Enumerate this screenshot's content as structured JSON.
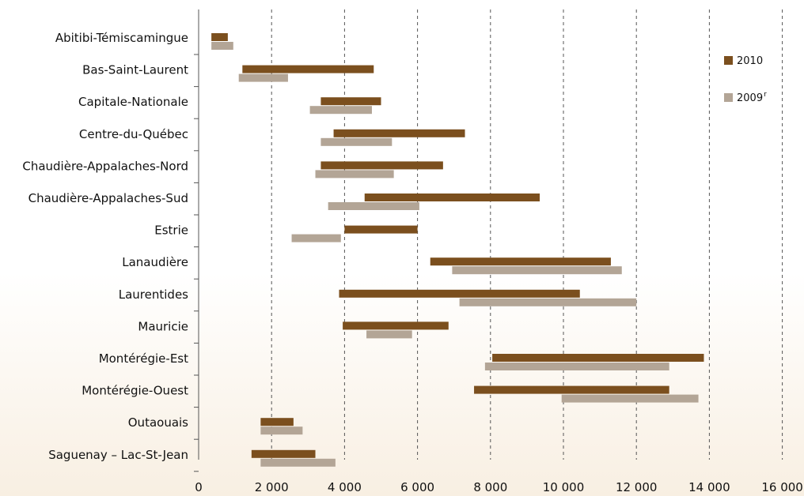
{
  "chart_data": {
    "type": "bar",
    "subtype": "floating-range-horizontal",
    "title": "",
    "xlabel": "",
    "ylabel": "",
    "xlim": [
      0,
      16000
    ],
    "xticks": [
      0,
      2000,
      4000,
      6000,
      8000,
      10000,
      12000,
      14000,
      16000
    ],
    "xtick_labels": [
      "0",
      "2 000",
      "4 000",
      "6 000",
      "8 000",
      "10 000",
      "12 000",
      "14 000",
      "16 000"
    ],
    "grid": "vertical dashed",
    "legend_position": "top-right",
    "categories": [
      "Abitibi-Témiscamingue",
      "Bas-Saint-Laurent",
      "Capitale-Nationale",
      "Centre-du-Québec",
      "Chaudière-Appalaches-Nord",
      "Chaudière-Appalaches-Sud",
      "Estrie",
      "Lanaudière",
      "Laurentides",
      "Mauricie",
      "Montérégie-Est",
      "Montérégie-Ouest",
      "Outaouais",
      "Saguenay – Lac-St-Jean"
    ],
    "series": [
      {
        "name": "2010",
        "name_sup": "",
        "color": "#7b4f1e",
        "ranges": [
          [
            350,
            800
          ],
          [
            1200,
            4800
          ],
          [
            3350,
            5000
          ],
          [
            3700,
            7300
          ],
          [
            3350,
            6700
          ],
          [
            4550,
            9350
          ],
          [
            4000,
            6000
          ],
          [
            6350,
            11300
          ],
          [
            3850,
            10450
          ],
          [
            3950,
            6850
          ],
          [
            8050,
            13850
          ],
          [
            7550,
            12900
          ],
          [
            1700,
            2600
          ],
          [
            1450,
            3200
          ]
        ]
      },
      {
        "name": "2009",
        "name_sup": "r",
        "color": "#b3a596",
        "ranges": [
          [
            350,
            950
          ],
          [
            1100,
            2450
          ],
          [
            3050,
            4750
          ],
          [
            3350,
            5300
          ],
          [
            3200,
            5350
          ],
          [
            3550,
            6050
          ],
          [
            2550,
            3900
          ],
          [
            6950,
            11600
          ],
          [
            7150,
            12000
          ],
          [
            4600,
            5850
          ],
          [
            7850,
            12900
          ],
          [
            9950,
            13700
          ],
          [
            1700,
            2850
          ],
          [
            1700,
            3750
          ]
        ]
      }
    ]
  }
}
